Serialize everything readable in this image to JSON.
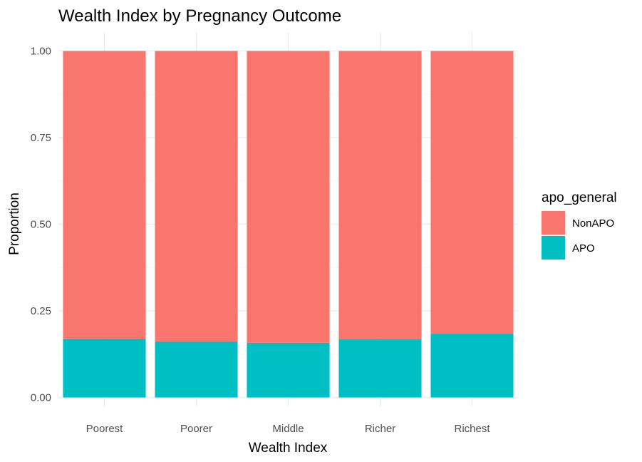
{
  "chart_data": {
    "type": "bar",
    "stacked": true,
    "title": "Wealth Index by Pregnancy Outcome",
    "xlabel": "Wealth Index",
    "ylabel": "Proportion",
    "categories": [
      "Poorest",
      "Poorer",
      "Middle",
      "Richer",
      "Richest"
    ],
    "ylim": [
      0,
      1
    ],
    "yticks": [
      "0.00",
      "0.25",
      "0.50",
      "0.75",
      "1.00"
    ],
    "series": [
      {
        "name": "APO",
        "color": "#00BFC4",
        "values": [
          0.17,
          0.162,
          0.158,
          0.168,
          0.184
        ]
      },
      {
        "name": "NonAPO",
        "color": "#F8766D",
        "values": [
          0.83,
          0.838,
          0.842,
          0.832,
          0.816
        ]
      }
    ],
    "legend": {
      "title": "apo_general",
      "position": "right",
      "entries": [
        "NonAPO",
        "APO"
      ]
    },
    "grid": true
  }
}
